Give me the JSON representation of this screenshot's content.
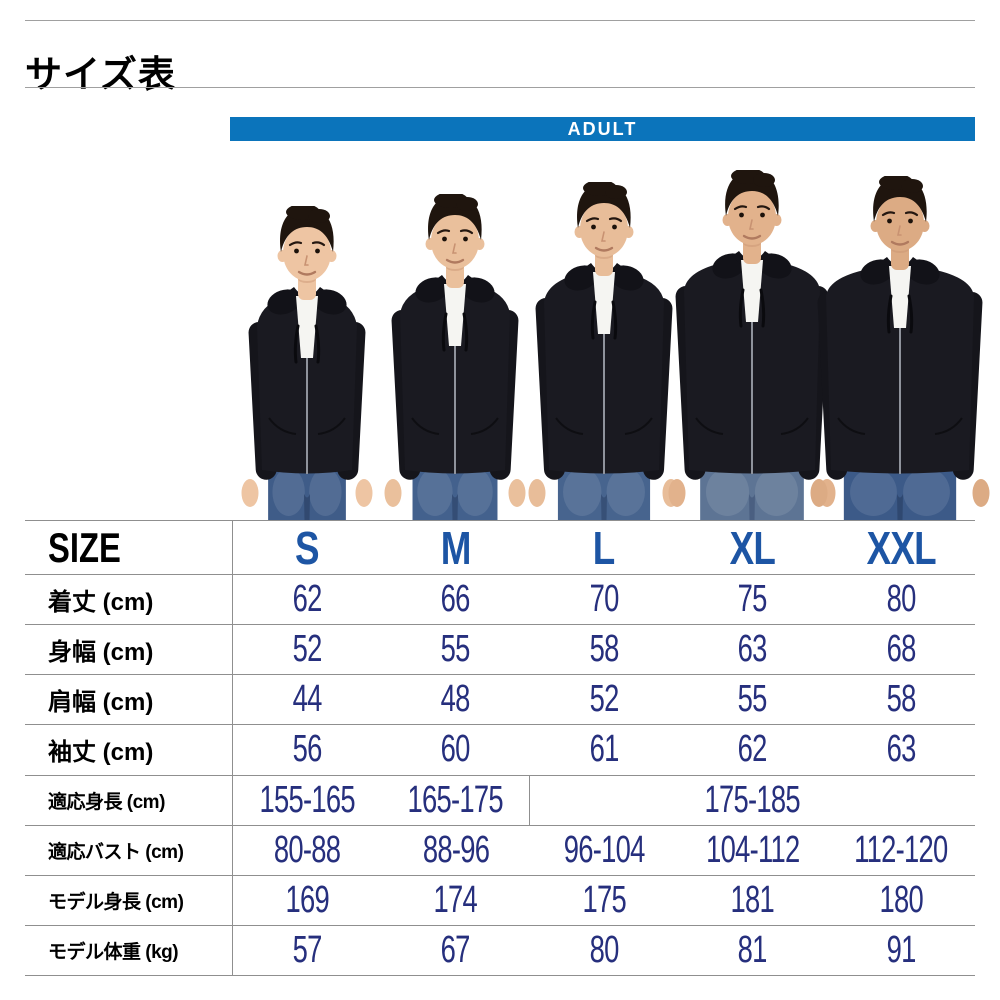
{
  "page": {
    "title": "サイズ表"
  },
  "banner": {
    "label": "ADULT"
  },
  "photo": {
    "models": [
      "S",
      "M",
      "L",
      "XL",
      "XXL"
    ]
  },
  "table": {
    "corner_label": "SIZE",
    "columns": [
      "S",
      "M",
      "L",
      "XL",
      "XXL"
    ],
    "rows": [
      {
        "label": "着丈 (cm)",
        "cells": [
          {
            "text": "62"
          },
          {
            "text": "66"
          },
          {
            "text": "70"
          },
          {
            "text": "75"
          },
          {
            "text": "80"
          }
        ]
      },
      {
        "label": "身幅 (cm)",
        "cells": [
          {
            "text": "52"
          },
          {
            "text": "55"
          },
          {
            "text": "58"
          },
          {
            "text": "63"
          },
          {
            "text": "68"
          }
        ]
      },
      {
        "label": "肩幅 (cm)",
        "cells": [
          {
            "text": "44"
          },
          {
            "text": "48"
          },
          {
            "text": "52"
          },
          {
            "text": "55"
          },
          {
            "text": "58"
          }
        ]
      },
      {
        "label": "袖丈 (cm)",
        "cells": [
          {
            "text": "56"
          },
          {
            "text": "60"
          },
          {
            "text": "61"
          },
          {
            "text": "62"
          },
          {
            "text": "63"
          }
        ]
      },
      {
        "label": "適応身長 (cm)",
        "cells": [
          {
            "text": "155-165"
          },
          {
            "text": "165-175"
          },
          {
            "text": "175-185",
            "span": 3,
            "divider": true
          }
        ]
      },
      {
        "label": "適応バスト (cm)",
        "cells": [
          {
            "text": "80-88"
          },
          {
            "text": "88-96"
          },
          {
            "text": "96-104"
          },
          {
            "text": "104-112"
          },
          {
            "text": "112-120"
          }
        ]
      },
      {
        "label": "モデル身長 (cm)",
        "cells": [
          {
            "text": "169"
          },
          {
            "text": "174"
          },
          {
            "text": "175"
          },
          {
            "text": "181"
          },
          {
            "text": "180"
          }
        ]
      },
      {
        "label": "モデル体重 (kg)",
        "cells": [
          {
            "text": "57"
          },
          {
            "text": "67"
          },
          {
            "text": "80"
          },
          {
            "text": "81"
          },
          {
            "text": "91"
          }
        ]
      }
    ]
  },
  "colors": {
    "banner_blue": "#0b74bb",
    "size_blue": "#1d55a4",
    "value_navy": "#262f7d",
    "line_gray": "#8f8f8f"
  }
}
